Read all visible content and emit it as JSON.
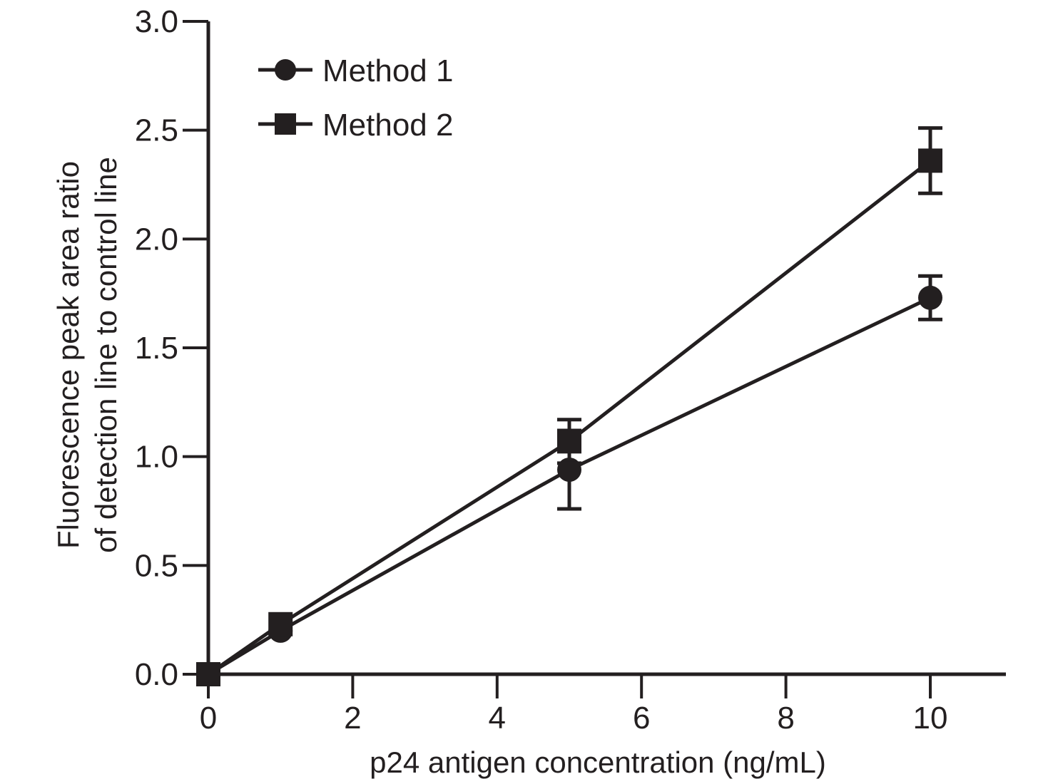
{
  "chart_data": {
    "type": "line",
    "title": "",
    "xlabel": "p24 antigen concentration (ng/mL)",
    "ylabel_lines": [
      "Fluorescence peak area ratio",
      "of detection line to control line"
    ],
    "xlim": [
      0,
      11
    ],
    "ylim": [
      0,
      3
    ],
    "xticks": [
      0,
      2,
      4,
      6,
      8,
      10
    ],
    "yticks": [
      0,
      0.5,
      1,
      1.5,
      2,
      2.5,
      3
    ],
    "xtick_labels": [
      "0",
      "2",
      "4",
      "6",
      "8",
      "10"
    ],
    "ytick_labels": [
      "0.0",
      "0.5",
      "1.0",
      "1.5",
      "2.0",
      "2.5",
      "3.0"
    ],
    "grid": false,
    "legend_position": "top-left",
    "x": [
      0,
      1,
      5,
      10
    ],
    "series": [
      {
        "name": "Method 1",
        "marker": "circle",
        "values": [
          0.0,
          0.2,
          0.94,
          1.73
        ],
        "errors": [
          0.0,
          0.02,
          0.18,
          0.1
        ]
      },
      {
        "name": "Method 2",
        "marker": "square",
        "values": [
          0.0,
          0.23,
          1.07,
          2.36
        ],
        "errors": [
          0.0,
          0.02,
          0.1,
          0.15
        ]
      }
    ],
    "colors": {
      "ink": "#231f20"
    }
  }
}
